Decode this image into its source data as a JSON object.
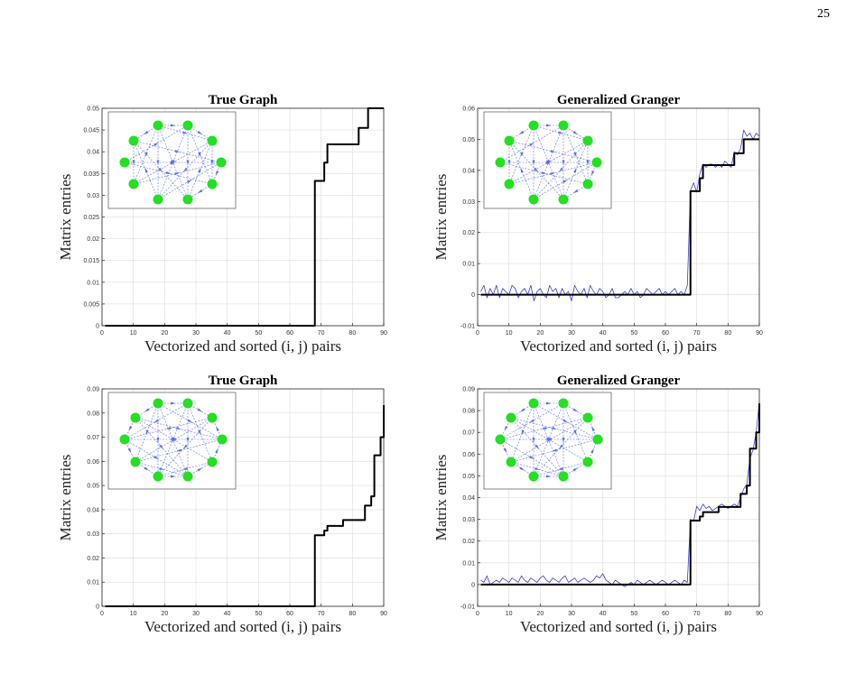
{
  "page": {
    "number": "25",
    "caption_fragment": ""
  },
  "inset": {
    "node_color": "#22e022",
    "edge_color": "#5a6ff0"
  },
  "chart_data": [
    {
      "type": "line",
      "title": "True Graph",
      "xlabel": "Vectorized and sorted (i, j) pairs",
      "ylabel": "Matrix entries",
      "xlim": [
        0,
        90
      ],
      "ylim": [
        0,
        0.05
      ],
      "xticks": [
        0,
        10,
        20,
        30,
        40,
        50,
        60,
        70,
        80,
        90
      ],
      "xtick_labels": [
        "0",
        "10",
        "20",
        "30",
        "40",
        "50",
        "60",
        "70",
        "80",
        "90"
      ],
      "yticks": [
        0,
        0.005,
        0.01,
        0.015,
        0.02,
        0.025,
        0.03,
        0.035,
        0.04,
        0.045,
        0.05
      ],
      "ytick_labels": [
        "0",
        "0.005",
        "0.01",
        "0.015",
        "0.02",
        "0.025",
        "0.03",
        "0.035",
        "0.04",
        "0.045",
        "0.05"
      ],
      "grid": true,
      "series": [
        {
          "color": "#000000",
          "x": [
            1,
            67,
            68,
            70,
            71,
            72,
            78,
            79,
            80,
            81,
            82,
            84,
            85,
            90
          ],
          "y": [
            0,
            0,
            0.0333,
            0.0333,
            0.0375,
            0.0417,
            0.0417,
            0.0417,
            0.0417,
            0.0417,
            0.0455,
            0.0455,
            0.05,
            0.05
          ]
        }
      ],
      "inset_graph": "graph_a"
    },
    {
      "type": "line",
      "title": "Generalized Granger",
      "xlabel": "Vectorized and sorted (i, j) pairs",
      "ylabel": "Matrix entries",
      "xlim": [
        0,
        90
      ],
      "ylim": [
        -0.01,
        0.06
      ],
      "xticks": [
        0,
        10,
        20,
        30,
        40,
        50,
        60,
        70,
        80,
        90
      ],
      "xtick_labels": [
        "0",
        "10",
        "20",
        "30",
        "40",
        "50",
        "60",
        "70",
        "80",
        "90"
      ],
      "yticks": [
        -0.01,
        0,
        0.01,
        0.02,
        0.03,
        0.04,
        0.05,
        0.06
      ],
      "ytick_labels": [
        "-0.01",
        "0",
        "0.01",
        "0.02",
        "0.03",
        "0.04",
        "0.05",
        "0.06"
      ],
      "grid": true,
      "series": [
        {
          "color": "#000000",
          "x": [
            1,
            67,
            68,
            70,
            71,
            72,
            78,
            79,
            80,
            81,
            82,
            84,
            85,
            90
          ],
          "y": [
            0,
            0,
            0.0333,
            0.0333,
            0.0375,
            0.0417,
            0.0417,
            0.0417,
            0.0417,
            0.0417,
            0.0455,
            0.0455,
            0.05,
            0.05
          ]
        },
        {
          "color": "#3b3bd8",
          "x": [
            1,
            2,
            3,
            4,
            5,
            6,
            7,
            8,
            9,
            10,
            11,
            12,
            13,
            14,
            15,
            16,
            17,
            18,
            19,
            20,
            21,
            22,
            23,
            24,
            25,
            26,
            27,
            28,
            29,
            30,
            31,
            32,
            33,
            34,
            35,
            36,
            37,
            38,
            39,
            40,
            41,
            42,
            43,
            44,
            45,
            46,
            47,
            48,
            49,
            50,
            51,
            52,
            53,
            54,
            55,
            56,
            57,
            58,
            59,
            60,
            61,
            62,
            63,
            64,
            65,
            66,
            67,
            68,
            69,
            70,
            71,
            72,
            73,
            74,
            75,
            76,
            77,
            78,
            79,
            80,
            81,
            82,
            83,
            84,
            85,
            86,
            87,
            88,
            89,
            90
          ],
          "y": [
            0.001,
            0.003,
            -0.001,
            0.002,
            0.0,
            0.003,
            -0.001,
            0.002,
            0.001,
            0.0,
            0.003,
            0.002,
            -0.001,
            0.001,
            0.002,
            0.0,
            0.003,
            -0.002,
            0.001,
            0.002,
            0.0,
            -0.001,
            0.003,
            0.001,
            0.002,
            -0.001,
            0.002,
            0.0,
            0.001,
            -0.002,
            0.003,
            0.001,
            0.0,
            0.002,
            -0.001,
            0.003,
            0.001,
            0.0,
            0.002,
            0.001,
            -0.001,
            0.0,
            0.002,
            -0.001,
            -0.001,
            0.0,
            0.001,
            0.0,
            0.002,
            0.0,
            0.001,
            -0.001,
            0.0,
            0.002,
            0.001,
            0.0,
            0.001,
            0.002,
            0.0,
            0.001,
            0.0,
            0.001,
            0.002,
            0.0,
            0.001,
            0.0,
            0.003,
            0.0335,
            0.036,
            0.033,
            0.039,
            0.042,
            0.041,
            0.042,
            0.042,
            0.041,
            0.042,
            0.041,
            0.043,
            0.042,
            0.041,
            0.046,
            0.045,
            0.047,
            0.053,
            0.051,
            0.052,
            0.05,
            0.052,
            0.051
          ]
        }
      ],
      "inset_graph": "graph_a"
    },
    {
      "type": "line",
      "title": "True Graph",
      "xlabel": "Vectorized and sorted (i, j) pairs",
      "ylabel": "Matrix entries",
      "xlim": [
        0,
        90
      ],
      "ylim": [
        0,
        0.09
      ],
      "xticks": [
        0,
        10,
        20,
        30,
        40,
        50,
        60,
        70,
        80,
        90
      ],
      "xtick_labels": [
        "0",
        "10",
        "20",
        "30",
        "40",
        "50",
        "60",
        "70",
        "80",
        "90"
      ],
      "yticks": [
        0,
        0.01,
        0.02,
        0.03,
        0.04,
        0.05,
        0.06,
        0.07,
        0.08,
        0.09
      ],
      "ytick_labels": [
        "0",
        "0.01",
        "0.02",
        "0.03",
        "0.04",
        "0.05",
        "0.06",
        "0.07",
        "0.08",
        "0.09"
      ],
      "grid": true,
      "series": [
        {
          "color": "#000000",
          "x": [
            1,
            67,
            68,
            70,
            71,
            72,
            76,
            77,
            82,
            83,
            84,
            85,
            86,
            87,
            88,
            89,
            90
          ],
          "y": [
            0,
            0,
            0.0294,
            0.0294,
            0.0313,
            0.0333,
            0.0333,
            0.0357,
            0.0357,
            0.0357,
            0.0417,
            0.0417,
            0.0455,
            0.0625,
            0.0625,
            0.07,
            0.0833
          ]
        }
      ],
      "inset_graph": "graph_b"
    },
    {
      "type": "line",
      "title": "Generalized Granger",
      "xlabel": "Vectorized and sorted (i, j) pairs",
      "ylabel": "Matrix entries",
      "xlim": [
        0,
        90
      ],
      "ylim": [
        -0.01,
        0.09
      ],
      "xticks": [
        0,
        10,
        20,
        30,
        40,
        50,
        60,
        70,
        80,
        90
      ],
      "xtick_labels": [
        "0",
        "10",
        "20",
        "30",
        "40",
        "50",
        "60",
        "70",
        "80",
        "90"
      ],
      "yticks": [
        -0.01,
        0,
        0.01,
        0.02,
        0.03,
        0.04,
        0.05,
        0.06,
        0.07,
        0.08,
        0.09
      ],
      "ytick_labels": [
        "-0.01",
        "0",
        "0.01",
        "0.02",
        "0.03",
        "0.04",
        "0.05",
        "0.06",
        "0.07",
        "0.08",
        "0.09"
      ],
      "grid": true,
      "series": [
        {
          "color": "#000000",
          "x": [
            1,
            67,
            68,
            70,
            71,
            72,
            76,
            77,
            82,
            83,
            84,
            85,
            86,
            87,
            88,
            89,
            90
          ],
          "y": [
            0,
            0,
            0.0294,
            0.0294,
            0.0313,
            0.0333,
            0.0333,
            0.0357,
            0.0357,
            0.0357,
            0.0417,
            0.0417,
            0.0455,
            0.0625,
            0.0625,
            0.07,
            0.0833
          ]
        },
        {
          "color": "#3b3bd8",
          "x": [
            1,
            2,
            3,
            4,
            5,
            6,
            7,
            8,
            9,
            10,
            11,
            12,
            13,
            14,
            15,
            16,
            17,
            18,
            19,
            20,
            21,
            22,
            23,
            24,
            25,
            26,
            27,
            28,
            29,
            30,
            31,
            32,
            33,
            34,
            35,
            36,
            37,
            38,
            39,
            40,
            41,
            42,
            43,
            44,
            45,
            46,
            47,
            48,
            49,
            50,
            51,
            52,
            53,
            54,
            55,
            56,
            57,
            58,
            59,
            60,
            61,
            62,
            63,
            64,
            65,
            66,
            67,
            68,
            69,
            70,
            71,
            72,
            73,
            74,
            75,
            76,
            77,
            78,
            79,
            80,
            81,
            82,
            83,
            84,
            85,
            86,
            87,
            88,
            89,
            90
          ],
          "y": [
            0.002,
            0.001,
            0.004,
            0.0,
            0.001,
            0.002,
            0.001,
            0.003,
            0.002,
            0.001,
            0.003,
            0.002,
            0.001,
            0.004,
            0.002,
            0.001,
            0.003,
            0.002,
            0.001,
            0.003,
            0.004,
            0.002,
            0.001,
            0.003,
            0.002,
            0.001,
            0.003,
            0.004,
            0.001,
            0.002,
            0.003,
            0.001,
            0.002,
            0.003,
            0.002,
            0.001,
            0.002,
            0.004,
            0.003,
            0.005,
            0.002,
            0.001,
            0.0,
            0.002,
            0.001,
            0.0,
            -0.001,
            0.0,
            0.001,
            0.0,
            0.002,
            0.001,
            0.0,
            0.001,
            0.002,
            0.001,
            0.0,
            0.001,
            0.002,
            0.001,
            0.0,
            0.001,
            0.002,
            0.001,
            0.0,
            0.002,
            0.001,
            0.03,
            0.029,
            0.036,
            0.034,
            0.037,
            0.035,
            0.036,
            0.034,
            0.035,
            0.036,
            0.037,
            0.036,
            0.035,
            0.036,
            0.037,
            0.036,
            0.04,
            0.044,
            0.046,
            0.058,
            0.062,
            0.07,
            0.084
          ]
        }
      ],
      "inset_graph": "graph_b"
    }
  ]
}
